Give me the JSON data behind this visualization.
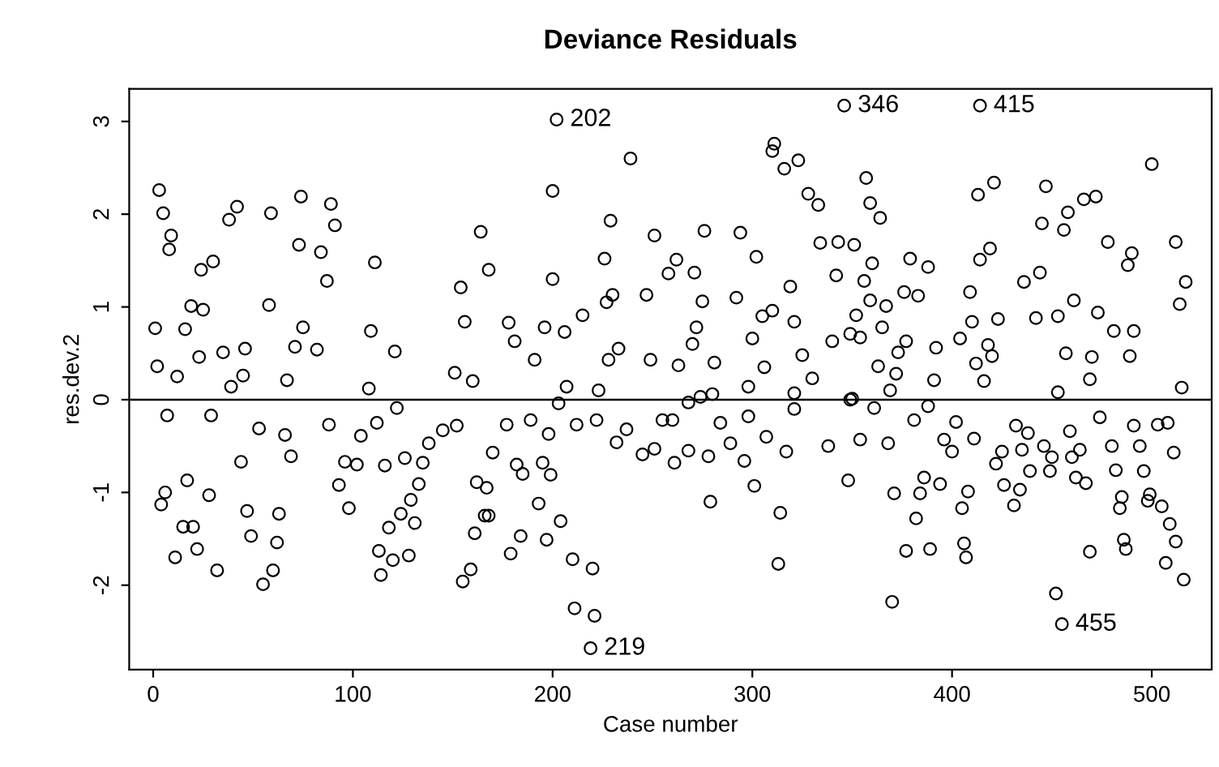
{
  "chart_data": {
    "type": "scatter",
    "title": "Deviance Residuals",
    "xlabel": "Case number",
    "ylabel": "res.dev.2",
    "xlim": [
      -12,
      530
    ],
    "ylim": [
      -2.91,
      3.35
    ],
    "xticks": [
      0,
      100,
      200,
      300,
      400,
      500
    ],
    "yticks": [
      -2,
      -1,
      0,
      1,
      2,
      3
    ],
    "grid": false,
    "marker": "circle",
    "ref_lines": [
      {
        "axis": "y",
        "value": 0,
        "color": "#000000"
      }
    ],
    "annotations": [
      {
        "text": "202",
        "x": 202,
        "y": 3.02
      },
      {
        "text": "219",
        "x": 219,
        "y": -2.68
      },
      {
        "text": "346",
        "x": 346,
        "y": 3.17
      },
      {
        "text": "415",
        "x": 414,
        "y": 3.17
      },
      {
        "text": "455",
        "x": 455,
        "y": -2.42
      }
    ],
    "series": [
      {
        "color": "#000000",
        "x": [
          3,
          5,
          9,
          8,
          24,
          30,
          42,
          38,
          59,
          74,
          89,
          91,
          73,
          84,
          1,
          2,
          16,
          19,
          25,
          12,
          23,
          35,
          39,
          45,
          46,
          58,
          71,
          67,
          82,
          87,
          75,
          111,
          109,
          121,
          108,
          164,
          168,
          154,
          156,
          151,
          160,
          7,
          29,
          53,
          66,
          44,
          69,
          6,
          4,
          17,
          28,
          15,
          20,
          11,
          22,
          32,
          47,
          49,
          63,
          62,
          60,
          55,
          88,
          104,
          112,
          96,
          93,
          98,
          102,
          116,
          126,
          135,
          133,
          129,
          124,
          131,
          118,
          113,
          120,
          128,
          114,
          122,
          138,
          145,
          152,
          162,
          166,
          161,
          159,
          155,
          170,
          202,
          239,
          200,
          229,
          226,
          251,
          276,
          294,
          311,
          310,
          323,
          316,
          328,
          333,
          346,
          200,
          178,
          181,
          191,
          196,
          206,
          215,
          227,
          230,
          228,
          233,
          247,
          258,
          262,
          271,
          275,
          272,
          270,
          249,
          263,
          281,
          292,
          302,
          300,
          305,
          310,
          321,
          334,
          343,
          342,
          319,
          325,
          330,
          340,
          306,
          298,
          207,
          203,
          223,
          274,
          280,
          321,
          349,
          177,
          189,
          198,
          182,
          185,
          195,
          199,
          193,
          204,
          184,
          197,
          179,
          210,
          220,
          211,
          221,
          219,
          167,
          168,
          212,
          222,
          232,
          245,
          251,
          237,
          255,
          260,
          268,
          261,
          268,
          278,
          279,
          284,
          289,
          296,
          301,
          298,
          307,
          317,
          314,
          313,
          321,
          338,
          348,
          414,
          357,
          359,
          364,
          351,
          360,
          379,
          388,
          356,
          376,
          359,
          383,
          367,
          352,
          365,
          349,
          354,
          377,
          373,
          363,
          372,
          392,
          391,
          369,
          350,
          361,
          413,
          421,
          419,
          414,
          409,
          410,
          404,
          418,
          420,
          412,
          416,
          423,
          436,
          444,
          447,
          445,
          456,
          458,
          466,
          472,
          478,
          490,
          488,
          500,
          512,
          517,
          514,
          515,
          442,
          453,
          461,
          473,
          481,
          491,
          489,
          457,
          470,
          469,
          453,
          354,
          368,
          381,
          388,
          371,
          384,
          386,
          382,
          377,
          389,
          370,
          394,
          396,
          402,
          400,
          411,
          408,
          405,
          406,
          407,
          425,
          422,
          426,
          431,
          432,
          438,
          435,
          439,
          434,
          446,
          450,
          449,
          459,
          460,
          464,
          462,
          467,
          452,
          455,
          469,
          474,
          480,
          482,
          485,
          484,
          486,
          487,
          491,
          494,
          496,
          499,
          498,
          503,
          508,
          511,
          505,
          509,
          512,
          507,
          516
        ],
        "values": [
          2.26,
          2.01,
          1.77,
          1.62,
          1.4,
          1.49,
          2.08,
          1.94,
          2.01,
          2.19,
          2.11,
          1.88,
          1.67,
          1.59,
          0.77,
          0.36,
          0.76,
          1.01,
          0.97,
          0.25,
          0.46,
          0.51,
          0.14,
          0.26,
          0.55,
          1.02,
          0.57,
          0.21,
          0.54,
          1.28,
          0.78,
          1.48,
          0.74,
          0.52,
          0.12,
          1.81,
          1.4,
          1.21,
          0.84,
          0.29,
          0.2,
          -0.17,
          -0.17,
          -0.31,
          -0.38,
          -0.67,
          -0.61,
          -1.0,
          -1.13,
          -0.87,
          -1.03,
          -1.37,
          -1.37,
          -1.7,
          -1.61,
          -1.84,
          -1.2,
          -1.47,
          -1.23,
          -1.54,
          -1.84,
          -1.99,
          -0.27,
          -0.39,
          -0.25,
          -0.67,
          -0.92,
          -1.17,
          -0.7,
          -0.71,
          -0.63,
          -0.68,
          -0.91,
          -1.08,
          -1.23,
          -1.33,
          -1.38,
          -1.63,
          -1.73,
          -1.68,
          -1.89,
          -0.09,
          -0.47,
          -0.33,
          -0.28,
          -0.89,
          -1.25,
          -1.44,
          -1.83,
          -1.96,
          -0.57,
          3.02,
          2.6,
          2.25,
          1.93,
          1.52,
          1.77,
          1.82,
          1.8,
          2.76,
          2.68,
          2.58,
          2.49,
          2.22,
          2.1,
          3.17,
          1.3,
          0.83,
          0.63,
          0.43,
          0.78,
          0.73,
          0.91,
          1.05,
          1.13,
          0.43,
          0.55,
          1.13,
          1.36,
          1.51,
          1.37,
          1.06,
          0.78,
          0.6,
          0.43,
          0.37,
          0.4,
          1.1,
          1.54,
          0.66,
          0.9,
          0.96,
          0.84,
          1.69,
          1.7,
          1.34,
          1.22,
          0.48,
          0.23,
          0.63,
          0.35,
          0.14,
          0.14,
          -0.04,
          0.1,
          0.03,
          0.06,
          0.07,
          0.0,
          -0.27,
          -0.22,
          -0.37,
          -0.7,
          -0.8,
          -0.68,
          -0.81,
          -1.12,
          -1.31,
          -1.47,
          -1.51,
          -1.66,
          -1.72,
          -1.82,
          -2.25,
          -2.33,
          -2.68,
          -0.95,
          -1.25,
          -0.27,
          -0.22,
          -0.46,
          -0.59,
          -0.53,
          -0.32,
          -0.22,
          -0.22,
          -0.03,
          -0.68,
          -0.55,
          -0.61,
          -1.1,
          -0.25,
          -0.47,
          -0.66,
          -0.93,
          -0.18,
          -0.4,
          -0.56,
          -1.22,
          -1.77,
          -0.1,
          -0.5,
          -0.87,
          3.17,
          2.39,
          2.12,
          1.96,
          1.67,
          1.47,
          1.52,
          1.43,
          1.28,
          1.16,
          1.07,
          1.12,
          1.01,
          0.91,
          0.78,
          0.71,
          0.67,
          0.63,
          0.51,
          0.36,
          0.28,
          0.56,
          0.21,
          0.1,
          0.01,
          -0.09,
          2.21,
          2.34,
          1.63,
          1.51,
          1.16,
          0.84,
          0.66,
          0.59,
          0.47,
          0.39,
          0.2,
          0.87,
          1.27,
          1.37,
          2.3,
          1.9,
          1.83,
          2.02,
          2.16,
          2.19,
          1.7,
          1.58,
          1.45,
          2.54,
          1.7,
          1.27,
          1.03,
          0.13,
          0.88,
          0.9,
          1.07,
          0.94,
          0.74,
          0.74,
          0.47,
          0.5,
          0.46,
          0.22,
          0.08,
          -0.43,
          -0.47,
          -0.22,
          -0.07,
          -1.01,
          -1.01,
          -0.84,
          -1.28,
          -1.63,
          -1.61,
          -2.18,
          -0.91,
          -0.43,
          -0.24,
          -0.56,
          -0.42,
          -0.99,
          -1.17,
          -1.55,
          -1.7,
          -0.56,
          -0.69,
          -0.92,
          -1.14,
          -0.28,
          -0.36,
          -0.54,
          -0.77,
          -0.97,
          -0.5,
          -0.62,
          -0.77,
          -0.34,
          -0.62,
          -0.54,
          -0.84,
          -0.9,
          -2.09,
          -2.42,
          -1.64,
          -0.19,
          -0.5,
          -0.76,
          -1.05,
          -1.17,
          -1.51,
          -1.61,
          -0.28,
          -0.5,
          -0.77,
          -1.02,
          -1.09,
          -0.27,
          -0.25,
          -0.57,
          -1.15,
          -1.34,
          -1.53,
          -1.76,
          -1.94
        ]
      }
    ]
  }
}
